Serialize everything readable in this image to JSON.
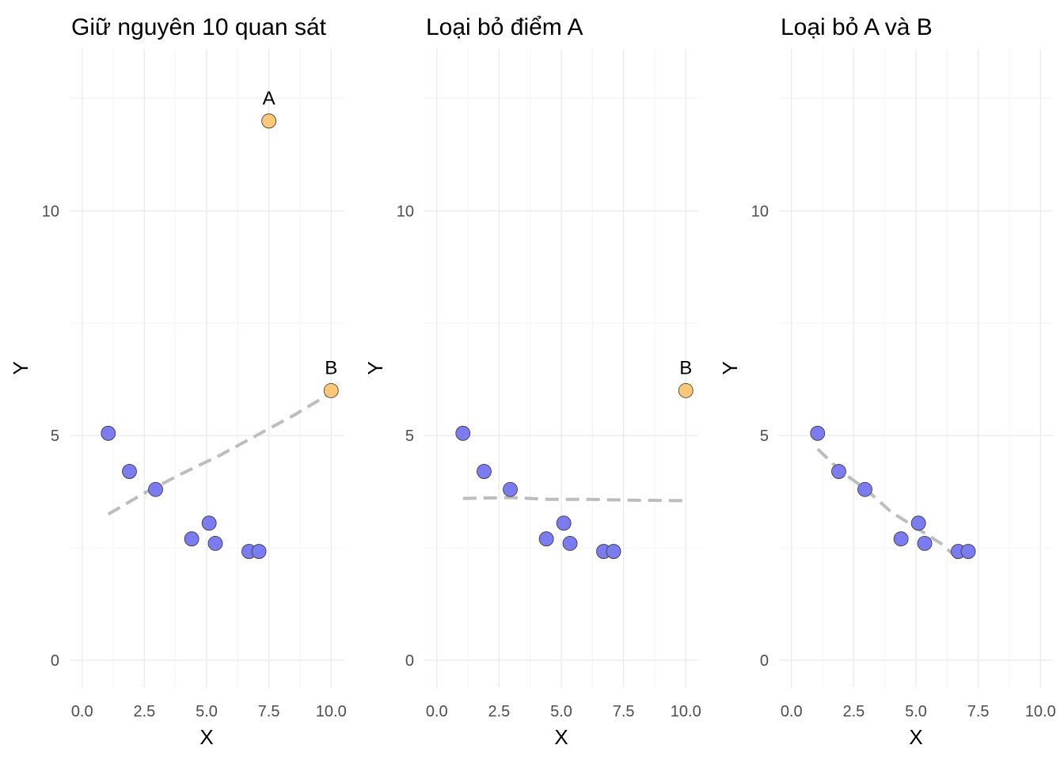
{
  "chart_data": [
    {
      "type": "scatter",
      "title": "Giữ nguyên 10 quan sát",
      "xlabel": "X",
      "ylabel": "Y",
      "xlim": [
        -0.5,
        10.5
      ],
      "ylim": [
        -0.6,
        13.6
      ],
      "x_ticks": [
        0,
        2.5,
        5,
        7.5,
        10
      ],
      "x_tick_labels": [
        "0.0",
        "2.5",
        "5.0",
        "7.5",
        "10.0"
      ],
      "y_ticks": [
        0,
        5,
        10
      ],
      "y_tick_labels": [
        "0",
        "5",
        "10"
      ],
      "grid": true,
      "points": [
        {
          "x": 1.05,
          "y": 5.05,
          "group": "normal"
        },
        {
          "x": 1.9,
          "y": 4.2,
          "group": "normal"
        },
        {
          "x": 2.95,
          "y": 3.8,
          "group": "normal"
        },
        {
          "x": 4.4,
          "y": 2.7,
          "group": "normal"
        },
        {
          "x": 5.1,
          "y": 3.05,
          "group": "normal"
        },
        {
          "x": 5.35,
          "y": 2.6,
          "group": "normal"
        },
        {
          "x": 6.7,
          "y": 2.42,
          "group": "normal"
        },
        {
          "x": 7.1,
          "y": 2.42,
          "group": "normal"
        },
        {
          "x": 7.5,
          "y": 12.0,
          "group": "outlier",
          "label": "A"
        },
        {
          "x": 10.0,
          "y": 6.0,
          "group": "outlier",
          "label": "B"
        }
      ],
      "fit_line": [
        [
          1.05,
          3.25
        ],
        [
          2.5,
          3.72
        ],
        [
          4.0,
          4.15
        ],
        [
          5.5,
          4.55
        ],
        [
          7.0,
          5.0
        ],
        [
          8.5,
          5.45
        ],
        [
          10.0,
          5.95
        ]
      ]
    },
    {
      "type": "scatter",
      "title": "Loại bỏ điểm A",
      "xlabel": "X",
      "ylabel": "Y",
      "xlim": [
        -0.5,
        10.5
      ],
      "ylim": [
        -0.6,
        13.6
      ],
      "x_ticks": [
        0,
        2.5,
        5,
        7.5,
        10
      ],
      "x_tick_labels": [
        "0.0",
        "2.5",
        "5.0",
        "7.5",
        "10.0"
      ],
      "y_ticks": [
        0,
        5,
        10
      ],
      "y_tick_labels": [
        "0",
        "5",
        "10"
      ],
      "grid": true,
      "points": [
        {
          "x": 1.05,
          "y": 5.05,
          "group": "normal"
        },
        {
          "x": 1.9,
          "y": 4.2,
          "group": "normal"
        },
        {
          "x": 2.95,
          "y": 3.8,
          "group": "normal"
        },
        {
          "x": 4.4,
          "y": 2.7,
          "group": "normal"
        },
        {
          "x": 5.1,
          "y": 3.05,
          "group": "normal"
        },
        {
          "x": 5.35,
          "y": 2.6,
          "group": "normal"
        },
        {
          "x": 6.7,
          "y": 2.42,
          "group": "normal"
        },
        {
          "x": 7.1,
          "y": 2.42,
          "group": "normal"
        },
        {
          "x": 10.0,
          "y": 6.0,
          "group": "outlier",
          "label": "B"
        }
      ],
      "fit_line": [
        [
          1.05,
          3.6
        ],
        [
          3.0,
          3.62
        ],
        [
          4.5,
          3.58
        ],
        [
          6.0,
          3.58
        ],
        [
          8.0,
          3.56
        ],
        [
          10.0,
          3.55
        ]
      ]
    },
    {
      "type": "scatter",
      "title": "Loại bỏ A và B",
      "xlabel": "X",
      "ylabel": "Y",
      "xlim": [
        -0.5,
        10.5
      ],
      "ylim": [
        -0.6,
        13.6
      ],
      "x_ticks": [
        0,
        2.5,
        5,
        7.5,
        10
      ],
      "x_tick_labels": [
        "0.0",
        "2.5",
        "5.0",
        "7.5",
        "10.0"
      ],
      "y_ticks": [
        0,
        5,
        10
      ],
      "y_tick_labels": [
        "0",
        "5",
        "10"
      ],
      "grid": true,
      "points": [
        {
          "x": 1.05,
          "y": 5.05,
          "group": "normal"
        },
        {
          "x": 1.9,
          "y": 4.2,
          "group": "normal"
        },
        {
          "x": 2.95,
          "y": 3.8,
          "group": "normal"
        },
        {
          "x": 4.4,
          "y": 2.7,
          "group": "normal"
        },
        {
          "x": 5.1,
          "y": 3.05,
          "group": "normal"
        },
        {
          "x": 5.35,
          "y": 2.6,
          "group": "normal"
        },
        {
          "x": 6.7,
          "y": 2.42,
          "group": "normal"
        },
        {
          "x": 7.1,
          "y": 2.42,
          "group": "normal"
        }
      ],
      "fit_line": [
        [
          1.05,
          4.7
        ],
        [
          2.0,
          4.2
        ],
        [
          3.0,
          3.8
        ],
        [
          4.0,
          3.3
        ],
        [
          5.0,
          2.95
        ],
        [
          6.0,
          2.6
        ],
        [
          6.7,
          2.25
        ]
      ]
    }
  ],
  "colors": {
    "normal_point": "#7b7bf2",
    "outlier_point": "#fcc777"
  }
}
